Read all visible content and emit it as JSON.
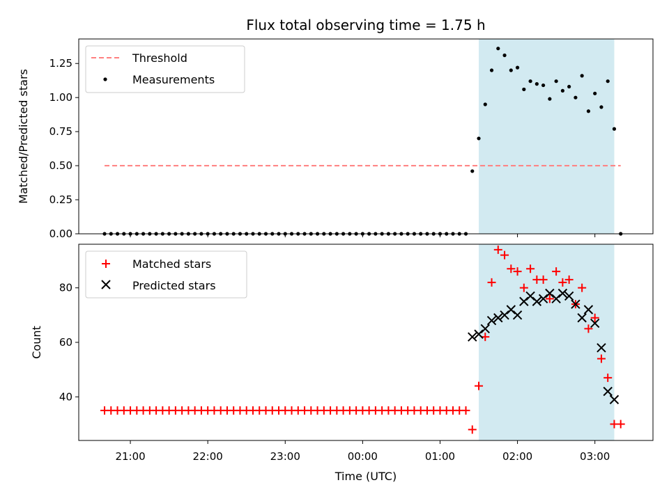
{
  "chart_data": [
    {
      "type": "scatter",
      "title": "Flux total observing time = 1.75 h",
      "xlabel": "",
      "ylabel": "Matched/Predicted stars",
      "xlim": [
        "20:20",
        "03:45"
      ],
      "ylim": [
        0,
        1.43
      ],
      "yticks": [
        0.0,
        0.25,
        0.5,
        0.75,
        1.0,
        1.25
      ],
      "ytick_labels": [
        "0.00",
        "0.25",
        "0.50",
        "0.75",
        "1.00",
        "1.25"
      ],
      "shaded_region": {
        "x_start": "01:30",
        "x_end": "03:15",
        "color": "#add8e6"
      },
      "legend": {
        "placement": "top-left",
        "entries": [
          "Threshold",
          "Measurements"
        ]
      },
      "threshold": {
        "name": "Threshold",
        "value": 0.5,
        "x_start": "20:40",
        "x_end": "03:20",
        "color": "#ff7f7f"
      },
      "series": [
        {
          "name": "Measurements",
          "color": "#000000",
          "points": [
            [
              "20:40",
              0
            ],
            [
              "20:45",
              0
            ],
            [
              "20:50",
              0
            ],
            [
              "20:55",
              0
            ],
            [
              "21:00",
              0
            ],
            [
              "21:05",
              0
            ],
            [
              "21:10",
              0
            ],
            [
              "21:15",
              0
            ],
            [
              "21:20",
              0
            ],
            [
              "21:25",
              0
            ],
            [
              "21:30",
              0
            ],
            [
              "21:35",
              0
            ],
            [
              "21:40",
              0
            ],
            [
              "21:45",
              0
            ],
            [
              "21:50",
              0
            ],
            [
              "21:55",
              0
            ],
            [
              "22:00",
              0
            ],
            [
              "22:05",
              0
            ],
            [
              "22:10",
              0
            ],
            [
              "22:15",
              0
            ],
            [
              "22:20",
              0
            ],
            [
              "22:25",
              0
            ],
            [
              "22:30",
              0
            ],
            [
              "22:35",
              0
            ],
            [
              "22:40",
              0
            ],
            [
              "22:45",
              0
            ],
            [
              "22:50",
              0
            ],
            [
              "22:55",
              0
            ],
            [
              "23:00",
              0
            ],
            [
              "23:05",
              0
            ],
            [
              "23:10",
              0
            ],
            [
              "23:15",
              0
            ],
            [
              "23:20",
              0
            ],
            [
              "23:25",
              0
            ],
            [
              "23:30",
              0
            ],
            [
              "23:35",
              0
            ],
            [
              "23:40",
              0
            ],
            [
              "23:45",
              0
            ],
            [
              "23:50",
              0
            ],
            [
              "23:55",
              0
            ],
            [
              "00:00",
              0
            ],
            [
              "00:05",
              0
            ],
            [
              "00:10",
              0
            ],
            [
              "00:15",
              0
            ],
            [
              "00:20",
              0
            ],
            [
              "00:25",
              0
            ],
            [
              "00:30",
              0
            ],
            [
              "00:35",
              0
            ],
            [
              "00:40",
              0
            ],
            [
              "00:45",
              0
            ],
            [
              "00:50",
              0
            ],
            [
              "00:55",
              0
            ],
            [
              "01:00",
              0
            ],
            [
              "01:05",
              0
            ],
            [
              "01:10",
              0
            ],
            [
              "01:15",
              0
            ],
            [
              "01:20",
              0
            ],
            [
              "01:25",
              0.46
            ],
            [
              "01:30",
              0.7
            ],
            [
              "01:35",
              0.95
            ],
            [
              "01:40",
              1.2
            ],
            [
              "01:45",
              1.36
            ],
            [
              "01:50",
              1.31
            ],
            [
              "01:55",
              1.2
            ],
            [
              "02:00",
              1.22
            ],
            [
              "02:05",
              1.06
            ],
            [
              "02:10",
              1.12
            ],
            [
              "02:15",
              1.1
            ],
            [
              "02:20",
              1.09
            ],
            [
              "02:25",
              0.99
            ],
            [
              "02:30",
              1.12
            ],
            [
              "02:35",
              1.05
            ],
            [
              "02:40",
              1.08
            ],
            [
              "02:45",
              1.0
            ],
            [
              "02:50",
              1.16
            ],
            [
              "02:55",
              0.9
            ],
            [
              "03:00",
              1.03
            ],
            [
              "03:05",
              0.93
            ],
            [
              "03:10",
              1.12
            ],
            [
              "03:15",
              0.77
            ],
            [
              "03:20",
              0
            ]
          ]
        }
      ]
    },
    {
      "type": "scatter",
      "title": "",
      "xlabel": "Time (UTC)",
      "ylabel": "Count",
      "xlim": [
        "20:20",
        "03:45"
      ],
      "ylim": [
        24,
        96
      ],
      "yticks": [
        40,
        60,
        80
      ],
      "ytick_labels": [
        "40",
        "60",
        "80"
      ],
      "xticks": [
        "21:00",
        "22:00",
        "23:00",
        "00:00",
        "01:00",
        "02:00",
        "03:00"
      ],
      "xtick_labels": [
        "21:00",
        "22:00",
        "23:00",
        "00:00",
        "01:00",
        "02:00",
        "03:00"
      ],
      "shaded_region": {
        "x_start": "01:30",
        "x_end": "03:15",
        "color": "#add8e6"
      },
      "legend": {
        "placement": "top-left",
        "entries": [
          "Matched stars",
          "Predicted stars"
        ]
      },
      "series": [
        {
          "name": "Matched stars",
          "marker": "plus",
          "color": "#ff0000",
          "points": [
            [
              "20:40",
              35
            ],
            [
              "20:45",
              35
            ],
            [
              "20:50",
              35
            ],
            [
              "20:55",
              35
            ],
            [
              "21:00",
              35
            ],
            [
              "21:05",
              35
            ],
            [
              "21:10",
              35
            ],
            [
              "21:15",
              35
            ],
            [
              "21:20",
              35
            ],
            [
              "21:25",
              35
            ],
            [
              "21:30",
              35
            ],
            [
              "21:35",
              35
            ],
            [
              "21:40",
              35
            ],
            [
              "21:45",
              35
            ],
            [
              "21:50",
              35
            ],
            [
              "21:55",
              35
            ],
            [
              "22:00",
              35
            ],
            [
              "22:05",
              35
            ],
            [
              "22:10",
              35
            ],
            [
              "22:15",
              35
            ],
            [
              "22:20",
              35
            ],
            [
              "22:25",
              35
            ],
            [
              "22:30",
              35
            ],
            [
              "22:35",
              35
            ],
            [
              "22:40",
              35
            ],
            [
              "22:45",
              35
            ],
            [
              "22:50",
              35
            ],
            [
              "22:55",
              35
            ],
            [
              "23:00",
              35
            ],
            [
              "23:05",
              35
            ],
            [
              "23:10",
              35
            ],
            [
              "23:15",
              35
            ],
            [
              "23:20",
              35
            ],
            [
              "23:25",
              35
            ],
            [
              "23:30",
              35
            ],
            [
              "23:35",
              35
            ],
            [
              "23:40",
              35
            ],
            [
              "23:45",
              35
            ],
            [
              "23:50",
              35
            ],
            [
              "23:55",
              35
            ],
            [
              "00:00",
              35
            ],
            [
              "00:05",
              35
            ],
            [
              "00:10",
              35
            ],
            [
              "00:15",
              35
            ],
            [
              "00:20",
              35
            ],
            [
              "00:25",
              35
            ],
            [
              "00:30",
              35
            ],
            [
              "00:35",
              35
            ],
            [
              "00:40",
              35
            ],
            [
              "00:45",
              35
            ],
            [
              "00:50",
              35
            ],
            [
              "00:55",
              35
            ],
            [
              "01:00",
              35
            ],
            [
              "01:05",
              35
            ],
            [
              "01:10",
              35
            ],
            [
              "01:15",
              35
            ],
            [
              "01:20",
              35
            ],
            [
              "01:25",
              28
            ],
            [
              "01:30",
              44
            ],
            [
              "01:35",
              62
            ],
            [
              "01:40",
              82
            ],
            [
              "01:45",
              94
            ],
            [
              "01:50",
              92
            ],
            [
              "01:55",
              87
            ],
            [
              "02:00",
              86
            ],
            [
              "02:05",
              80
            ],
            [
              "02:10",
              87
            ],
            [
              "02:15",
              83
            ],
            [
              "02:20",
              83
            ],
            [
              "02:25",
              76
            ],
            [
              "02:30",
              86
            ],
            [
              "02:35",
              82
            ],
            [
              "02:40",
              83
            ],
            [
              "02:45",
              74
            ],
            [
              "02:50",
              80
            ],
            [
              "02:55",
              65
            ],
            [
              "03:00",
              69
            ],
            [
              "03:05",
              54
            ],
            [
              "03:10",
              47
            ],
            [
              "03:15",
              30
            ],
            [
              "03:20",
              30
            ]
          ]
        },
        {
          "name": "Predicted stars",
          "marker": "x",
          "color": "#000000",
          "points": [
            [
              "01:25",
              62
            ],
            [
              "01:30",
              63
            ],
            [
              "01:35",
              65
            ],
            [
              "01:40",
              68
            ],
            [
              "01:45",
              69
            ],
            [
              "01:50",
              70
            ],
            [
              "01:55",
              72
            ],
            [
              "02:00",
              70
            ],
            [
              "02:05",
              75
            ],
            [
              "02:10",
              77
            ],
            [
              "02:15",
              75
            ],
            [
              "02:20",
              76
            ],
            [
              "02:25",
              78
            ],
            [
              "02:30",
              76
            ],
            [
              "02:35",
              78
            ],
            [
              "02:40",
              77
            ],
            [
              "02:45",
              74
            ],
            [
              "02:50",
              69
            ],
            [
              "02:55",
              72
            ],
            [
              "03:00",
              67
            ],
            [
              "03:05",
              58
            ],
            [
              "03:10",
              42
            ],
            [
              "03:15",
              39
            ]
          ]
        }
      ]
    }
  ]
}
